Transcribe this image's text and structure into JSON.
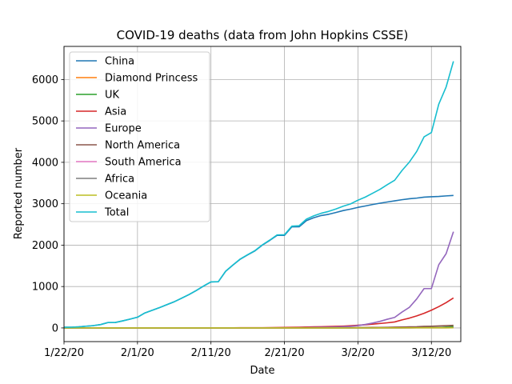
{
  "chart_data": {
    "type": "line",
    "title": "COVID-19 deaths (data from John Hopkins CSSE)",
    "xlabel": "Date",
    "ylabel": "Reported number",
    "xlim": [
      "2020-01-22",
      "2020-03-16"
    ],
    "ylim": [
      -330,
      6800
    ],
    "x_ticks": [
      {
        "label": "1/22/20",
        "date": "2020-01-22"
      },
      {
        "label": "2/1/20",
        "date": "2020-02-01"
      },
      {
        "label": "2/11/20",
        "date": "2020-02-11"
      },
      {
        "label": "2/21/20",
        "date": "2020-02-21"
      },
      {
        "label": "3/2/20",
        "date": "2020-03-02"
      },
      {
        "label": "3/12/20",
        "date": "2020-03-12"
      }
    ],
    "y_ticks": [
      0,
      1000,
      2000,
      3000,
      4000,
      5000,
      6000
    ],
    "grid": true,
    "legend_position": "upper-left",
    "x": [
      "2020-01-22",
      "2020-01-23",
      "2020-01-24",
      "2020-01-25",
      "2020-01-26",
      "2020-01-27",
      "2020-01-28",
      "2020-01-29",
      "2020-01-30",
      "2020-01-31",
      "2020-02-01",
      "2020-02-02",
      "2020-02-03",
      "2020-02-04",
      "2020-02-05",
      "2020-02-06",
      "2020-02-07",
      "2020-02-08",
      "2020-02-09",
      "2020-02-10",
      "2020-02-11",
      "2020-02-12",
      "2020-02-13",
      "2020-02-14",
      "2020-02-15",
      "2020-02-16",
      "2020-02-17",
      "2020-02-18",
      "2020-02-19",
      "2020-02-20",
      "2020-02-21",
      "2020-02-22",
      "2020-02-23",
      "2020-02-24",
      "2020-02-25",
      "2020-02-26",
      "2020-02-27",
      "2020-02-28",
      "2020-02-29",
      "2020-03-01",
      "2020-03-02",
      "2020-03-03",
      "2020-03-04",
      "2020-03-05",
      "2020-03-06",
      "2020-03-07",
      "2020-03-08",
      "2020-03-09",
      "2020-03-10",
      "2020-03-11",
      "2020-03-12",
      "2020-03-13",
      "2020-03-14",
      "2020-03-15"
    ],
    "series": [
      {
        "name": "China",
        "color": "#1f77b4",
        "values": [
          17,
          18,
          26,
          42,
          56,
          82,
          131,
          133,
          171,
          213,
          259,
          361,
          425,
          490,
          562,
          632,
          717,
          804,
          904,
          1011,
          1111,
          1116,
          1368,
          1520,
          1662,
          1765,
          1863,
          2002,
          2114,
          2236,
          2236,
          2441,
          2443,
          2593,
          2663,
          2715,
          2744,
          2788,
          2835,
          2870,
          2912,
          2945,
          2981,
          3013,
          3042,
          3070,
          3097,
          3120,
          3136,
          3158,
          3169,
          3176,
          3189,
          3199
        ]
      },
      {
        "name": "Diamond Princess",
        "color": "#ff7f0e",
        "values": [
          0,
          0,
          0,
          0,
          0,
          0,
          0,
          0,
          0,
          0,
          0,
          0,
          0,
          0,
          0,
          0,
          0,
          0,
          0,
          0,
          0,
          0,
          0,
          0,
          0,
          0,
          0,
          0,
          0,
          2,
          2,
          3,
          3,
          3,
          4,
          4,
          4,
          6,
          6,
          6,
          6,
          6,
          6,
          6,
          6,
          6,
          7,
          7,
          7,
          7,
          7,
          7,
          7,
          7
        ]
      },
      {
        "name": "UK",
        "color": "#2ca02c",
        "values": [
          0,
          0,
          0,
          0,
          0,
          0,
          0,
          0,
          0,
          0,
          0,
          0,
          0,
          0,
          0,
          0,
          0,
          0,
          0,
          0,
          0,
          0,
          0,
          0,
          0,
          0,
          0,
          0,
          0,
          0,
          0,
          0,
          0,
          0,
          0,
          0,
          0,
          0,
          0,
          0,
          0,
          0,
          0,
          1,
          2,
          2,
          3,
          4,
          6,
          8,
          8,
          8,
          21,
          35
        ]
      },
      {
        "name": "Asia",
        "color": "#d62728",
        "values": [
          0,
          0,
          0,
          0,
          0,
          0,
          0,
          0,
          0,
          0,
          0,
          1,
          1,
          1,
          1,
          1,
          1,
          2,
          2,
          2,
          2,
          2,
          3,
          3,
          4,
          4,
          5,
          5,
          7,
          9,
          12,
          15,
          18,
          22,
          26,
          30,
          34,
          38,
          44,
          54,
          66,
          77,
          92,
          107,
          124,
          145,
          194,
          237,
          291,
          354,
          429,
          514,
          611,
          724
        ]
      },
      {
        "name": "Europe",
        "color": "#9467bd",
        "values": [
          0,
          0,
          0,
          0,
          0,
          0,
          0,
          0,
          0,
          0,
          0,
          0,
          0,
          0,
          0,
          0,
          0,
          0,
          0,
          0,
          0,
          0,
          0,
          0,
          1,
          1,
          1,
          1,
          1,
          1,
          2,
          3,
          4,
          8,
          12,
          14,
          18,
          22,
          30,
          36,
          55,
          84,
          118,
          159,
          210,
          254,
          384,
          497,
          700,
          950,
          951,
          1526,
          1793,
          2325
        ]
      },
      {
        "name": "North America",
        "color": "#8c564b",
        "values": [
          0,
          0,
          0,
          0,
          0,
          0,
          0,
          0,
          0,
          0,
          0,
          0,
          0,
          0,
          0,
          0,
          0,
          0,
          0,
          0,
          0,
          0,
          0,
          0,
          0,
          0,
          0,
          0,
          0,
          0,
          0,
          0,
          0,
          0,
          0,
          0,
          0,
          0,
          1,
          1,
          6,
          9,
          11,
          12,
          15,
          19,
          22,
          26,
          30,
          39,
          42,
          48,
          56,
          63
        ]
      },
      {
        "name": "South America",
        "color": "#e377c2",
        "values": [
          0,
          0,
          0,
          0,
          0,
          0,
          0,
          0,
          0,
          0,
          0,
          0,
          0,
          0,
          0,
          0,
          0,
          0,
          0,
          0,
          0,
          0,
          0,
          0,
          0,
          0,
          0,
          0,
          0,
          0,
          0,
          0,
          0,
          0,
          0,
          0,
          0,
          0,
          0,
          0,
          0,
          0,
          0,
          0,
          0,
          0,
          0,
          0,
          1,
          1,
          2,
          3,
          3,
          5
        ]
      },
      {
        "name": "Africa",
        "color": "#7f7f7f",
        "values": [
          0,
          0,
          0,
          0,
          0,
          0,
          0,
          0,
          0,
          0,
          0,
          0,
          0,
          0,
          0,
          0,
          0,
          0,
          0,
          0,
          0,
          0,
          0,
          0,
          1,
          1,
          1,
          1,
          1,
          1,
          1,
          1,
          1,
          1,
          1,
          1,
          1,
          1,
          1,
          1,
          1,
          1,
          1,
          1,
          2,
          2,
          2,
          2,
          4,
          5,
          6,
          8,
          10,
          12
        ]
      },
      {
        "name": "Oceania",
        "color": "#bcbd22",
        "values": [
          0,
          0,
          0,
          0,
          0,
          0,
          0,
          0,
          0,
          0,
          0,
          0,
          0,
          0,
          0,
          0,
          0,
          0,
          0,
          0,
          0,
          0,
          0,
          0,
          0,
          0,
          0,
          0,
          0,
          0,
          0,
          0,
          0,
          0,
          0,
          0,
          0,
          0,
          0,
          1,
          1,
          1,
          1,
          2,
          2,
          2,
          2,
          3,
          3,
          3,
          3,
          3,
          3,
          5
        ]
      },
      {
        "name": "Total",
        "color": "#17becf",
        "values": [
          17,
          18,
          26,
          42,
          56,
          82,
          131,
          133,
          171,
          213,
          259,
          362,
          426,
          491,
          563,
          633,
          718,
          806,
          906,
          1013,
          1113,
          1118,
          1371,
          1523,
          1667,
          1770,
          1869,
          2008,
          2122,
          2247,
          2251,
          2458,
          2469,
          2629,
          2708,
          2770,
          2814,
          2872,
          2941,
          2996,
          3085,
          3160,
          3253,
          3348,
          3460,
          3567,
          3803,
          4006,
          4263,
          4615,
          4720,
          5404,
          5819,
          6440
        ]
      }
    ]
  }
}
